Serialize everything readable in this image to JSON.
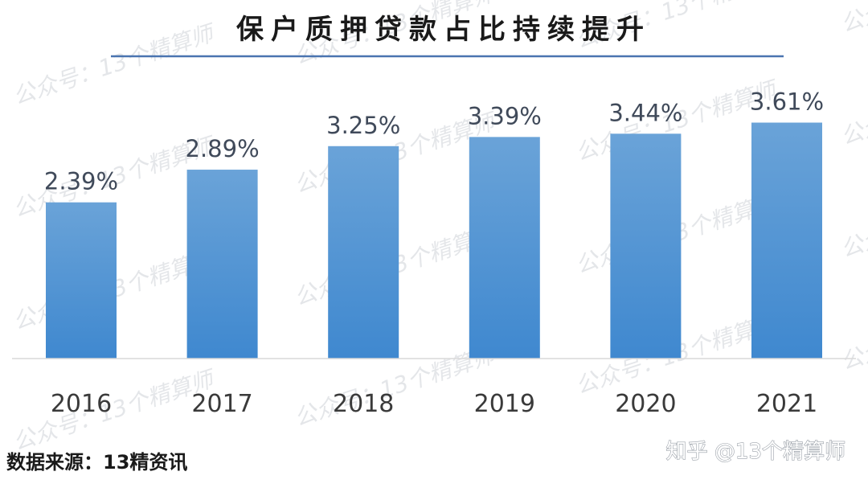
{
  "chart_data": {
    "type": "bar",
    "title": "保户质押贷款占比持续提升",
    "categories": [
      "2016",
      "2017",
      "2018",
      "2019",
      "2020",
      "2021"
    ],
    "values": [
      2.39,
      2.89,
      3.25,
      3.39,
      3.44,
      3.61
    ],
    "value_labels": [
      "2.39%",
      "2.89%",
      "3.25%",
      "3.39%",
      "3.44%",
      "3.61%"
    ],
    "unit": "%",
    "xlabel": "",
    "ylabel": "",
    "grid": false,
    "legend": "none",
    "colors": {
      "bar_top": "#6aa3d8",
      "bar_bottom": "#3f88cf",
      "title_rule": "#4a74b0",
      "axis": "#d9d9d9"
    }
  },
  "source": "数据来源：13精资讯",
  "credit": "知乎 @13个精算师",
  "watermark": "公众号：13个精算师"
}
